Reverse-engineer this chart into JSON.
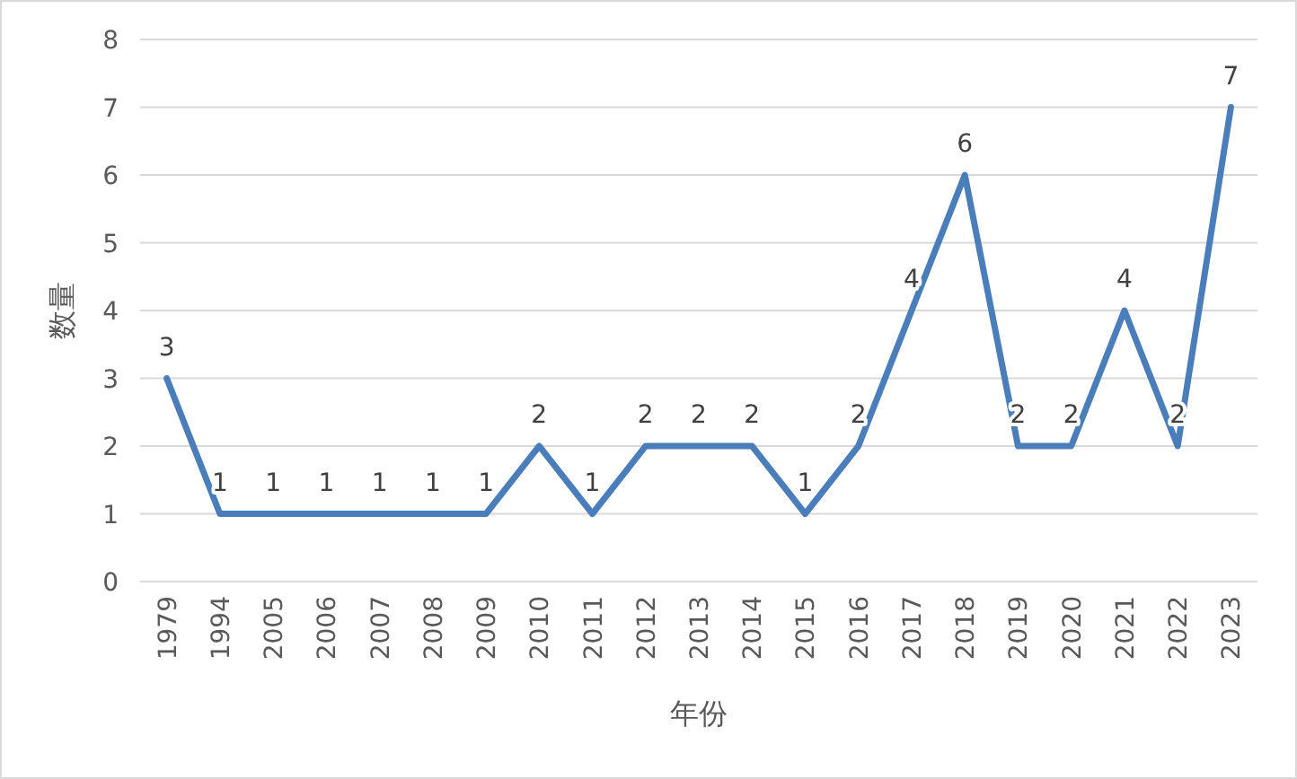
{
  "chart_data": {
    "type": "line",
    "categories": [
      "1979",
      "1994",
      "2005",
      "2006",
      "2007",
      "2008",
      "2009",
      "2010",
      "2011",
      "2012",
      "2013",
      "2014",
      "2015",
      "2016",
      "2017",
      "2018",
      "2019",
      "2020",
      "2021",
      "2022",
      "2023"
    ],
    "values": [
      3,
      1,
      1,
      1,
      1,
      1,
      1,
      2,
      1,
      2,
      2,
      2,
      1,
      2,
      4,
      6,
      2,
      2,
      4,
      2,
      7
    ],
    "color": "#4a7ebb",
    "xlabel": "年份",
    "ylabel": "数量",
    "ylim": [
      0,
      8
    ],
    "yticks": [
      0,
      1,
      2,
      3,
      4,
      5,
      6,
      7,
      8
    ],
    "grid": "y",
    "data_labels": true
  }
}
